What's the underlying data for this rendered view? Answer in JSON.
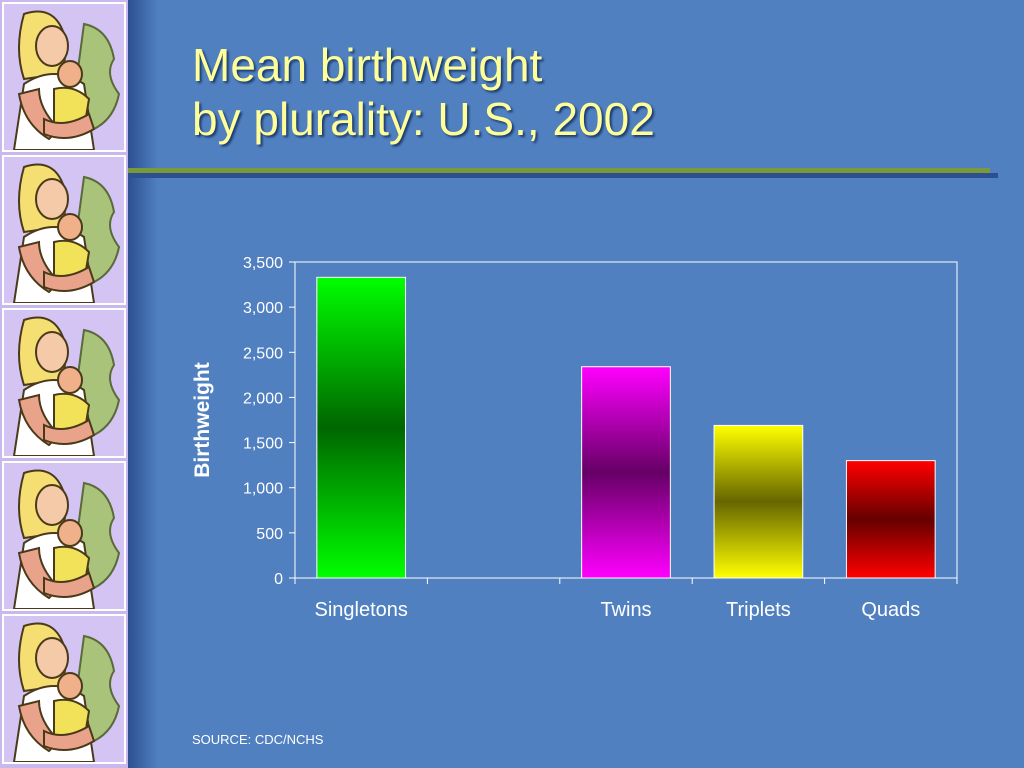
{
  "slide": {
    "title_line1": "Mean birthweight",
    "title_line2": "by plurality:  U.S., 2002",
    "source": "SOURCE: CDC/NCHS",
    "decoration_icon": "mother-and-child-clipart-icon"
  },
  "colors": {
    "background": "#5080c0",
    "title": "#ffff99",
    "rule": "#7a9a3a",
    "singletons": "#00ff00",
    "twins": "#ff00ff",
    "triplets": "#ffff00",
    "quads": "#ff0000"
  },
  "chart_data": {
    "type": "bar",
    "categories": [
      "Singletons",
      "",
      "Twins",
      "Triplets",
      "Quads"
    ],
    "values": [
      3330,
      null,
      2340,
      1690,
      1300
    ],
    "bar_colors": [
      "#00ff00",
      null,
      "#ff00ff",
      "#ffff00",
      "#ff0000"
    ],
    "bar_dark_colors": [
      "#006600",
      null,
      "#660066",
      "#666600",
      "#660000"
    ],
    "ylabel": "Birthweight",
    "xlabel": "",
    "ylim": [
      0,
      3500
    ],
    "yticks": [
      "0",
      "500",
      "1,000",
      "1,500",
      "2,000",
      "2,500",
      "3,000",
      "3,500"
    ],
    "grid": false,
    "legend": "none"
  }
}
